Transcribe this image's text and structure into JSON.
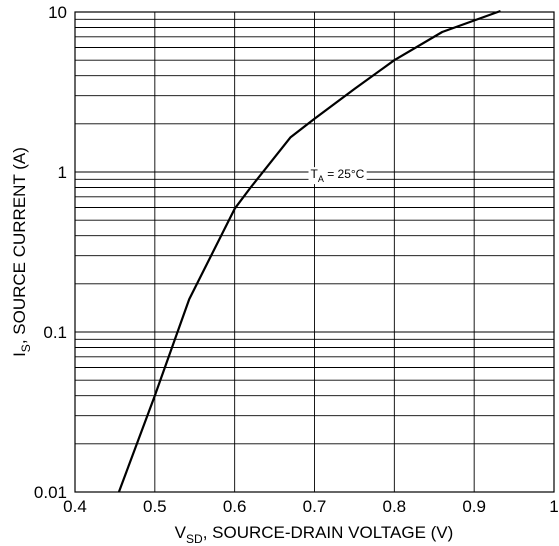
{
  "chart_data": {
    "type": "line",
    "title": "",
    "xlabel": {
      "prefix": "V",
      "subscript": "SD",
      "rest": ", SOURCE-DRAIN VOLTAGE (V)"
    },
    "ylabel": {
      "prefix": "I",
      "subscript": "S",
      "rest": ", SOURCE CURRENT (A)"
    },
    "xlim": [
      0.4,
      1.0
    ],
    "ylim": [
      0.01,
      10
    ],
    "yscale": "log",
    "grid": true,
    "x_ticks": [
      {
        "value": 0.4,
        "label": "0.4"
      },
      {
        "value": 0.5,
        "label": "0.5"
      },
      {
        "value": 0.6,
        "label": "0.6"
      },
      {
        "value": 0.7,
        "label": "0.7"
      },
      {
        "value": 0.8,
        "label": "0.8"
      },
      {
        "value": 0.9,
        "label": "0.9"
      },
      {
        "value": 1.0,
        "label": "1"
      }
    ],
    "y_ticks": [
      {
        "value": 0.01,
        "label": "0.01"
      },
      {
        "value": 0.1,
        "label": "0.1"
      },
      {
        "value": 1,
        "label": "1"
      },
      {
        "value": 10,
        "label": "10"
      }
    ],
    "series": [
      {
        "color": "#000000",
        "x": [
          0.455,
          0.5,
          0.543,
          0.6,
          0.62,
          0.67,
          0.7,
          0.75,
          0.8,
          0.86,
          0.933
        ],
        "y": [
          0.01,
          0.04,
          0.16,
          0.59,
          0.8,
          1.65,
          2.15,
          3.3,
          5.0,
          7.5,
          11.5
        ]
      }
    ],
    "annotation": {
      "prefix": "T",
      "subscript": "A",
      "rest": " = 25°C",
      "x": 0.695,
      "y": 0.97
    }
  }
}
